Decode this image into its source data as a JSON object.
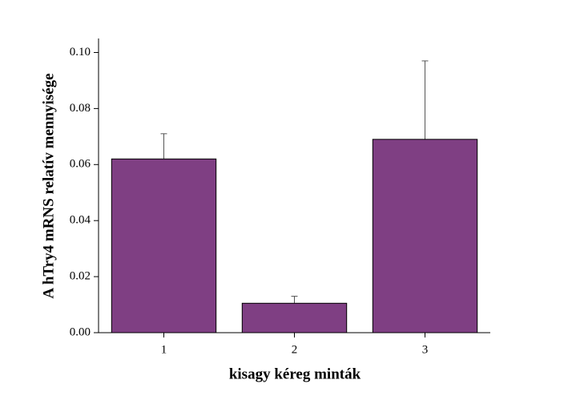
{
  "chart_data": {
    "type": "bar",
    "x_label": "kisagy kéreg minták",
    "y_label": "A hTry4 mRNS relatív mennyisége",
    "categories": [
      "1",
      "2",
      "3"
    ],
    "values": [
      0.062,
      0.0105,
      0.069
    ],
    "errors": [
      0.009,
      0.0025,
      0.028
    ],
    "color": "#7f3f83",
    "ylim": [
      0,
      0.105
    ],
    "yticks": [
      {
        "value": 0,
        "label": "0.00"
      },
      {
        "value": 0.02,
        "label": "0.02"
      },
      {
        "value": 0.04,
        "label": "0.04"
      },
      {
        "value": 0.06,
        "label": "0.06"
      },
      {
        "value": 0.08,
        "label": "0.08"
      },
      {
        "value": 0.1,
        "label": "0.10"
      }
    ]
  }
}
